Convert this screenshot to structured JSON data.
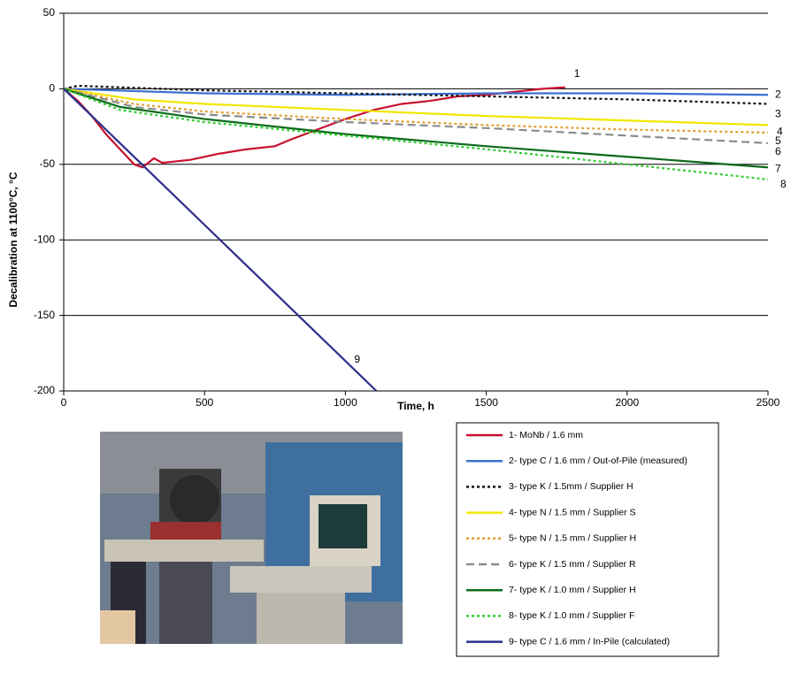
{
  "chart_data": {
    "type": "line",
    "y_label": "Decalibration at 1100°C, °C",
    "x_label": "Time, h",
    "xlim": [
      0,
      2500
    ],
    "xticks": [
      0,
      500,
      1000,
      1500,
      2000,
      2500
    ],
    "ylim": [
      -200,
      50
    ],
    "yticks": [
      -200,
      -150,
      -100,
      -50,
      0,
      50
    ],
    "grid": true,
    "series": [
      {
        "name": "1- MoNb / 1.6 mm",
        "label": "1",
        "color": "#c8102e",
        "style": "solid",
        "x": [
          0,
          50,
          100,
          150,
          200,
          250,
          280,
          320,
          350,
          450,
          550,
          650,
          750,
          800,
          900,
          1000,
          1100,
          1200,
          1300,
          1400,
          1500,
          1600,
          1700,
          1780
        ],
        "values": [
          0,
          -8,
          -18,
          -30,
          -40,
          -50,
          -52,
          -46,
          -49,
          -47,
          -43,
          -40,
          -38,
          -34,
          -27,
          -20,
          -14,
          -10,
          -8,
          -5,
          -4,
          -2,
          0,
          1
        ]
      },
      {
        "name": "2- type C / 1.6 mm / Out-of-Pile (measured)",
        "label": "2",
        "color": "#3a6fd0",
        "style": "solid",
        "x": [
          0,
          500,
          1000,
          1500,
          2000,
          2500
        ],
        "values": [
          0,
          -3,
          -4,
          -3,
          -3,
          -4
        ]
      },
      {
        "name": "3- type K / 1.5mm / Supplier H",
        "label": "3",
        "color": "#111111",
        "style": "dotted",
        "x": [
          0,
          50,
          500,
          1000,
          1500,
          2000,
          2500
        ],
        "values": [
          0,
          2,
          -1,
          -3,
          -5,
          -7,
          -10
        ]
      },
      {
        "name": "4- type N / 1.5 mm / Supplier S",
        "label": "4",
        "color": "#f2e600",
        "style": "solid",
        "x": [
          0,
          250,
          500,
          1000,
          1500,
          2000,
          2500
        ],
        "values": [
          0,
          -7,
          -10,
          -14,
          -18,
          -21,
          -24
        ]
      },
      {
        "name": "5- type N / 1.5 mm / Supplier H",
        "label": "5",
        "color": "#e0a030",
        "style": "dotted",
        "x": [
          0,
          250,
          500,
          1000,
          1500,
          2000,
          2500
        ],
        "values": [
          0,
          -10,
          -15,
          -20,
          -24,
          -27,
          -29
        ]
      },
      {
        "name": "6- type K / 1.5 mm / Supplier R",
        "label": "6",
        "color": "#8c8c8c",
        "style": "dashed",
        "x": [
          0,
          250,
          500,
          1000,
          1500,
          2000,
          2500
        ],
        "values": [
          0,
          -12,
          -17,
          -22,
          -26,
          -31,
          -36
        ]
      },
      {
        "name": "7- type K / 1.0 mm / Supplier H",
        "label": "7",
        "color": "#0b6b1a",
        "style": "solid",
        "x": [
          0,
          200,
          500,
          1000,
          1500,
          2000,
          2500
        ],
        "values": [
          0,
          -12,
          -20,
          -30,
          -38,
          -45,
          -52
        ]
      },
      {
        "name": "8- type K / 1.0 mm / Supplier F",
        "label": "8",
        "color": "#33cc33",
        "style": "dotted",
        "x": [
          0,
          200,
          500,
          1000,
          1500,
          2000,
          2500
        ],
        "values": [
          0,
          -14,
          -22,
          -31,
          -40,
          -50,
          -60
        ]
      },
      {
        "name": "9- type C / 1.6 mm / In-Pile (calculated)",
        "label": "9",
        "color": "#2e2e8c",
        "style": "solid",
        "x": [
          0,
          1110
        ],
        "values": [
          0,
          -200
        ]
      }
    ]
  }
}
